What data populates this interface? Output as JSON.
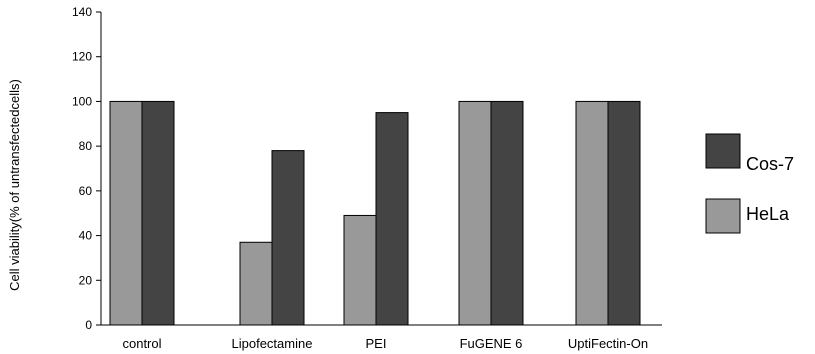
{
  "chart_data": {
    "type": "bar",
    "ylabel": "Cell viability(% of untransfectedcells)",
    "xlabel": "",
    "ylim": [
      0,
      140
    ],
    "yticks": [
      "0",
      "20",
      "40",
      "60",
      "80",
      "100",
      "120",
      "140"
    ],
    "categories": [
      "control",
      "Lipofectamine",
      "PEI",
      "FuGENE 6",
      "UptiFectin-On"
    ],
    "series": [
      {
        "name": "HeLa",
        "color": "#999999",
        "values": [
          100,
          37,
          49,
          100,
          100
        ]
      },
      {
        "name": "Cos-7",
        "color": "#444444",
        "values": [
          100,
          78,
          95,
          100,
          100
        ]
      }
    ],
    "legend": {
      "placement": "right",
      "order": [
        "Cos-7",
        "HeLa"
      ]
    },
    "grid": false
  }
}
